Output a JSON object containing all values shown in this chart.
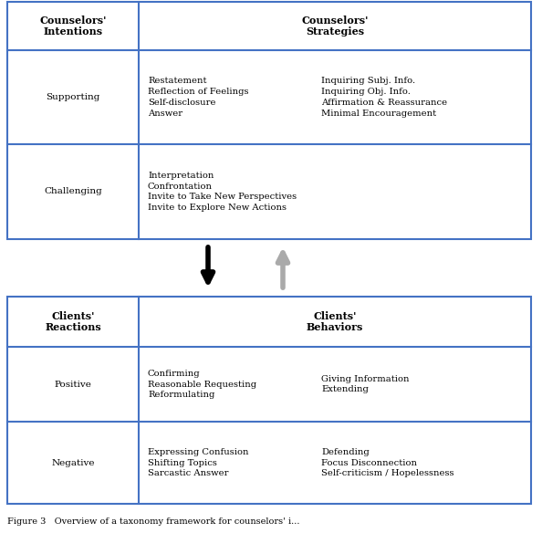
{
  "fig_width": 5.94,
  "fig_height": 5.84,
  "dpi": 100,
  "border_color": "#4472C4",
  "border_lw": 1.5,
  "bg_color": "#ffffff",
  "top_table": {
    "header": {
      "col1": "Counselors'\nIntentions",
      "col2": "Counselors'\nStrategies"
    },
    "rows": [
      {
        "label": "Supporting",
        "col2_left": "Restatement\nReflection of Feelings\nSelf-disclosure\nAnswer",
        "col2_right": "Inquiring Subj. Info.\nInquiring Obj. Info.\nAffirmation & Reassurance\nMinimal Encouragement"
      },
      {
        "label": "Challenging",
        "col2_left": "Interpretation\nConfrontation\nInvite to Take New Perspectives\nInvite to Explore New Actions",
        "col2_right": ""
      }
    ]
  },
  "bottom_table": {
    "header": {
      "col1": "Clients'\nReactions",
      "col2": "Clients'\nBehaviors"
    },
    "rows": [
      {
        "label": "Positive",
        "col2_left": "Confirming\nReasonable Requesting\nReformulating",
        "col2_right": "Giving Information\nExtending"
      },
      {
        "label": "Negative",
        "col2_left": "Expressing Confusion\nShifting Topics\nSarcastic Answer",
        "col2_right": "Defending\nFocus Disconnection\nSelf-criticism / Hopelessness"
      }
    ]
  },
  "caption": "Figure 3   Overview of a taxonomy framework for counselors' i..."
}
